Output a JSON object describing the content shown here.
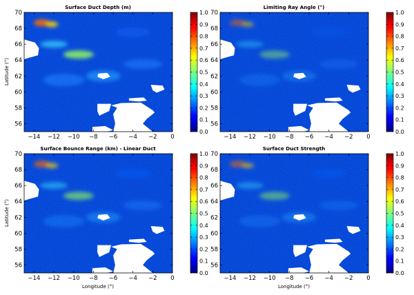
{
  "chart_data": [
    {
      "type": "heatmap",
      "title": "Surface Duct Depth (m)",
      "xlabel": "",
      "ylabel": "Latitude (°)",
      "x_ticks": [
        "−14",
        "−12",
        "−10",
        "−8",
        "−6",
        "−4",
        "−2",
        "0"
      ],
      "y_ticks": [
        "56",
        "58",
        "60",
        "62",
        "64",
        "66",
        "68",
        "70"
      ],
      "xlim": [
        -15,
        0
      ],
      "ylim": [
        55,
        70
      ],
      "colorbar": {
        "range": [
          0.0,
          1.0
        ],
        "ticks": [
          "0.0",
          "0.1",
          "0.2",
          "0.3",
          "0.4",
          "0.5",
          "0.6",
          "0.7",
          "0.8",
          "0.9",
          "1.0"
        ],
        "colormap": "jet"
      },
      "field_intensity": 1.0
    },
    {
      "type": "heatmap",
      "title": "Limiting Ray Angle (°)",
      "xlabel": "",
      "ylabel": "",
      "x_ticks": [
        "−14",
        "−12",
        "−10",
        "−8",
        "−6",
        "−4",
        "−2",
        "0"
      ],
      "y_ticks": [
        "56",
        "58",
        "60",
        "62",
        "64",
        "66",
        "68",
        "70"
      ],
      "xlim": [
        -15,
        0
      ],
      "ylim": [
        55,
        70
      ],
      "colorbar": {
        "range": [
          0.0,
          1.0
        ],
        "ticks": [
          "0.0",
          "0.1",
          "0.2",
          "0.3",
          "0.4",
          "0.5",
          "0.6",
          "0.7",
          "0.8",
          "0.9",
          "1.0"
        ],
        "colormap": "jet"
      },
      "field_intensity": 0.55
    },
    {
      "type": "heatmap",
      "title": "Surface Bounce Range (km) - Linear Duct",
      "xlabel": "Longitude (°)",
      "ylabel": "Latitude (°)",
      "x_ticks": [
        "−14",
        "−12",
        "−10",
        "−8",
        "−6",
        "−4",
        "−2",
        "0"
      ],
      "y_ticks": [
        "56",
        "58",
        "60",
        "62",
        "64",
        "66",
        "68",
        "70"
      ],
      "xlim": [
        -15,
        0
      ],
      "ylim": [
        55,
        70
      ],
      "colorbar": {
        "range": [
          0.0,
          1.0
        ],
        "ticks": [
          "0.0",
          "0.1",
          "0.2",
          "0.3",
          "0.4",
          "0.5",
          "0.6",
          "0.7",
          "0.8",
          "0.9",
          "1.0"
        ],
        "colormap": "jet"
      },
      "field_intensity": 0.75
    },
    {
      "type": "heatmap",
      "title": "Surface Duct Strength",
      "xlabel": "Longitude (°)",
      "ylabel": "",
      "x_ticks": [
        "−14",
        "−12",
        "−10",
        "−8",
        "−6",
        "−4",
        "−2",
        "0"
      ],
      "y_ticks": [
        "56",
        "58",
        "60",
        "62",
        "64",
        "66",
        "68",
        "70"
      ],
      "xlim": [
        -15,
        0
      ],
      "ylim": [
        55,
        70
      ],
      "colorbar": {
        "range": [
          0.0,
          1.0
        ],
        "ticks": [
          "0.0",
          "0.1",
          "0.2",
          "0.3",
          "0.4",
          "0.5",
          "0.6",
          "0.7",
          "0.8",
          "0.9",
          "1.0"
        ],
        "colormap": "jet"
      },
      "field_intensity": 0.6
    }
  ]
}
